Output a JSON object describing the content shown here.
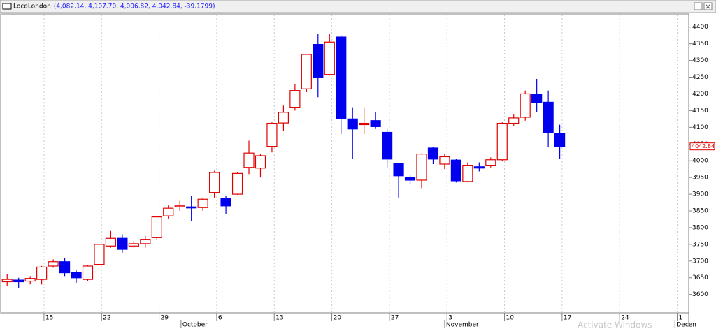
{
  "chart_data": {
    "type": "candlestick",
    "title": "LocoLondon",
    "subtitle": "(4,082.14, 4,107.70, 4,006.82, 4,042.84, -39.1799)",
    "watermark": "Activate Windows",
    "xlim": [
      -0.5,
      59.2
    ],
    "ylim": [
      3545,
      4437
    ],
    "yticks": [
      3600,
      3650,
      3700,
      3750,
      3800,
      3850,
      3900,
      3950,
      4000,
      4050,
      4100,
      4150,
      4200,
      4250,
      4300,
      4350,
      4400
    ],
    "xticks": [
      {
        "value": 3.2,
        "label": "15"
      },
      {
        "value": 8.2,
        "label": "22"
      },
      {
        "value": 13.2,
        "label": "29"
      },
      {
        "value": 18.2,
        "label": "6"
      },
      {
        "value": 23.2,
        "label": "13"
      },
      {
        "value": 28.2,
        "label": "20"
      },
      {
        "value": 33.2,
        "label": "27"
      },
      {
        "value": 38.2,
        "label": "3"
      },
      {
        "value": 43.2,
        "label": "10"
      },
      {
        "value": 48.2,
        "label": "17"
      },
      {
        "value": 53.2,
        "label": "24"
      },
      {
        "value": 58.2,
        "label": "1"
      }
    ],
    "month_ticks": [
      {
        "value": 15.1,
        "label": "October"
      },
      {
        "value": 38.0,
        "label": "November"
      },
      {
        "value": 58.0,
        "label": "Decen"
      }
    ],
    "grid": true,
    "up_color": "#e00000",
    "down_color": "#0000ee",
    "series": [
      {
        "name": "LocoLondon",
        "open": [
          3638,
          3643,
          3640,
          3645,
          3685,
          3698,
          3665,
          3645,
          3690,
          3745,
          3768,
          3745,
          3752,
          3770,
          3835,
          3862,
          3862,
          3860,
          3905,
          3888,
          3900,
          3980,
          3978,
          4043,
          4113,
          4160,
          4215,
          4348,
          4258,
          4370,
          4125,
          4108,
          4120,
          4085,
          3992,
          3950,
          3942,
          4038,
          3990,
          4002,
          3938,
          3982,
          3985,
          4003,
          4112,
          4130,
          4198,
          4175,
          4082.14
        ],
        "high": [
          3660,
          3650,
          3655,
          3685,
          3705,
          3710,
          3672,
          3688,
          3752,
          3790,
          3780,
          3760,
          3775,
          3835,
          3868,
          3880,
          3895,
          3890,
          3970,
          3895,
          3965,
          4060,
          4020,
          4115,
          4165,
          4228,
          4320,
          4380,
          4380,
          4375,
          4160,
          4160,
          4145,
          4095,
          3992,
          3958,
          4022,
          4042,
          4020,
          4005,
          3995,
          3995,
          4010,
          4115,
          4140,
          4210,
          4245,
          4210,
          4107.7
        ],
        "low": [
          3625,
          3620,
          3630,
          3630,
          3680,
          3655,
          3635,
          3640,
          3688,
          3740,
          3725,
          3740,
          3740,
          3765,
          3825,
          3850,
          3820,
          3850,
          3890,
          3840,
          3898,
          3960,
          3950,
          4025,
          4090,
          4150,
          4205,
          4190,
          4255,
          4080,
          4005,
          4080,
          4095,
          3980,
          3890,
          3930,
          3918,
          3990,
          3975,
          3935,
          3935,
          3968,
          3980,
          4000,
          4105,
          4120,
          4145,
          4040,
          4006.82
        ],
        "close": [
          3645,
          3638,
          3648,
          3682,
          3698,
          3665,
          3650,
          3685,
          3750,
          3768,
          3735,
          3752,
          3765,
          3832,
          3858,
          3865,
          3860,
          3885,
          3965,
          3865,
          3962,
          4023,
          4015,
          4112,
          4145,
          4210,
          4318,
          4250,
          4355,
          4125,
          4095,
          4112,
          4102,
          4005,
          3955,
          3942,
          4020,
          4005,
          4012,
          3940,
          3985,
          3978,
          4003,
          4112,
          4128,
          4200,
          4175,
          4085,
          4042.84
        ]
      }
    ]
  }
}
